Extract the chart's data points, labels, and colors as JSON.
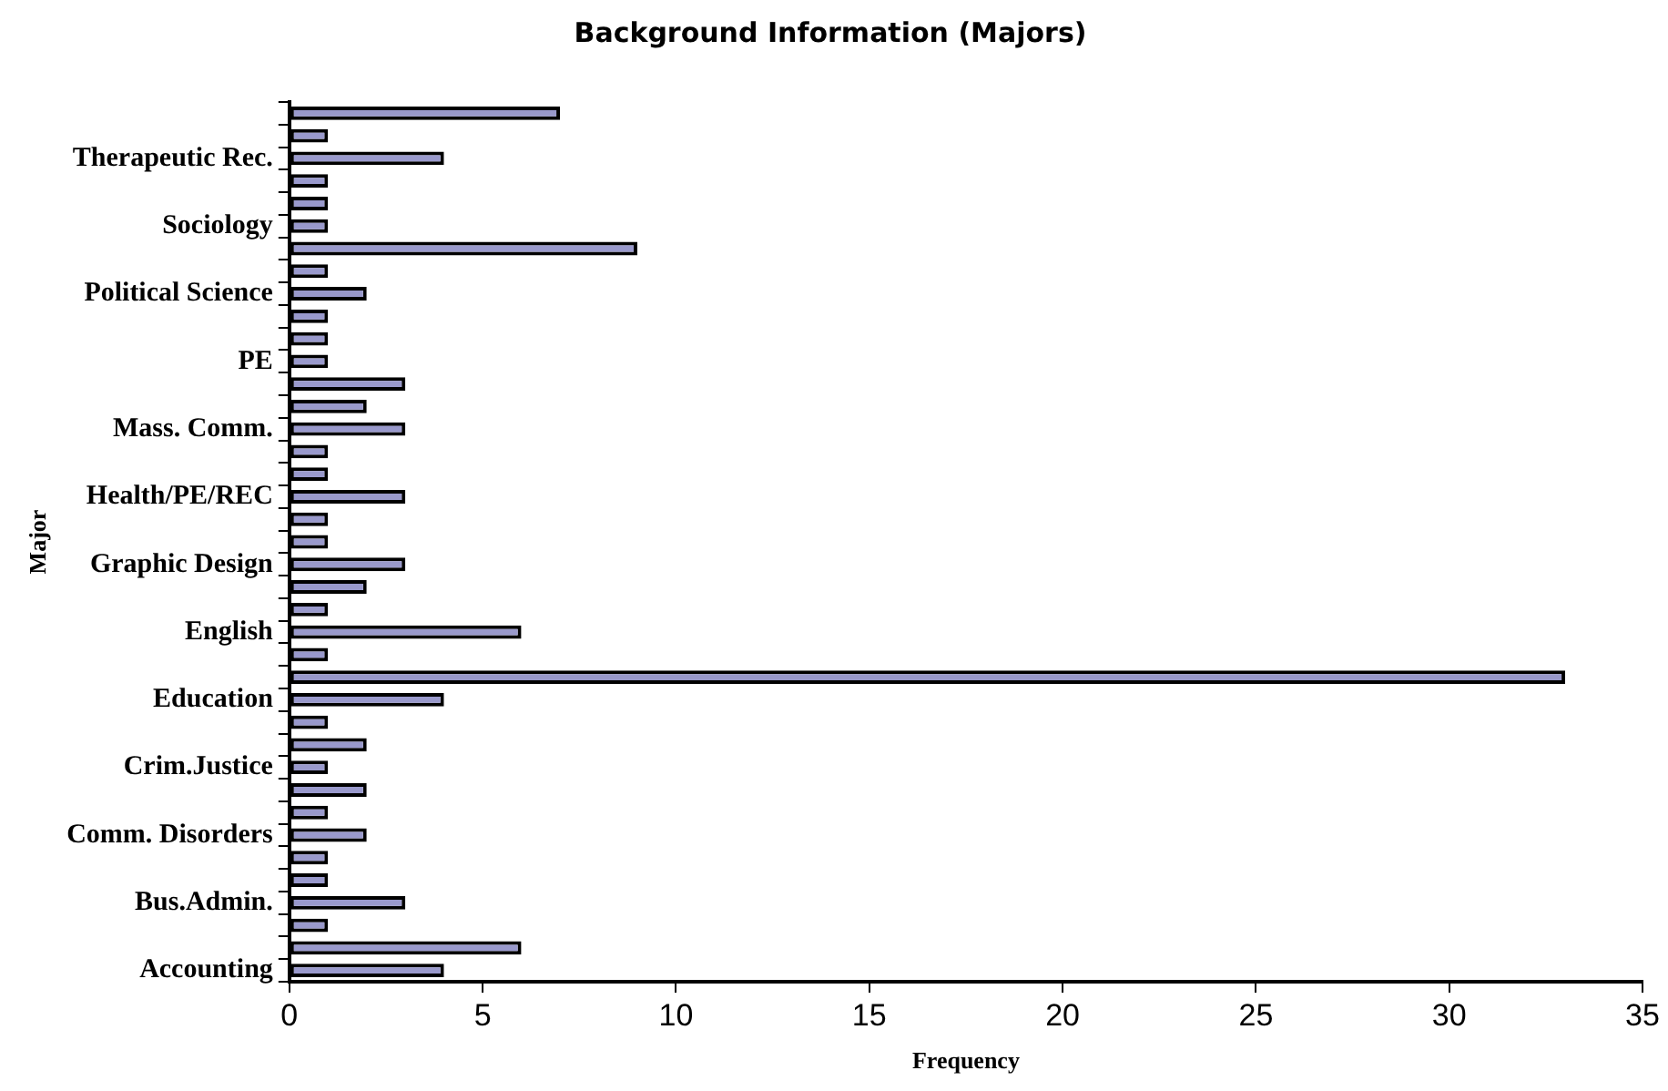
{
  "chart_data": {
    "type": "bar",
    "orientation": "horizontal",
    "title": "Background Information (Majors)",
    "xlabel": "Frequency",
    "ylabel": "Major",
    "categories": [
      null,
      null,
      "Therapeutic Rec.",
      null,
      null,
      "Sociology",
      null,
      null,
      "Political Science",
      null,
      null,
      "PE",
      null,
      null,
      "Mass. Comm.",
      null,
      null,
      "Health/PE/REC",
      null,
      null,
      "Graphic Design",
      null,
      null,
      "English",
      null,
      null,
      "Education",
      null,
      null,
      "Crim.Justice",
      null,
      null,
      "Comm. Disorders",
      null,
      null,
      "Bus.Admin.",
      null,
      null,
      "Accounting"
    ],
    "values": [
      7,
      1,
      4,
      1,
      1,
      1,
      9,
      1,
      2,
      1,
      1,
      1,
      3,
      2,
      3,
      1,
      1,
      3,
      1,
      1,
      3,
      2,
      1,
      6,
      1,
      33,
      4,
      1,
      2,
      1,
      2,
      1,
      2,
      1,
      1,
      3,
      1,
      6,
      4
    ],
    "color": "#9999cc",
    "xlim": [
      0,
      35
    ],
    "xticks": [
      0,
      5,
      10,
      15,
      20,
      25,
      30,
      35
    ],
    "grid": false,
    "legend": false
  }
}
